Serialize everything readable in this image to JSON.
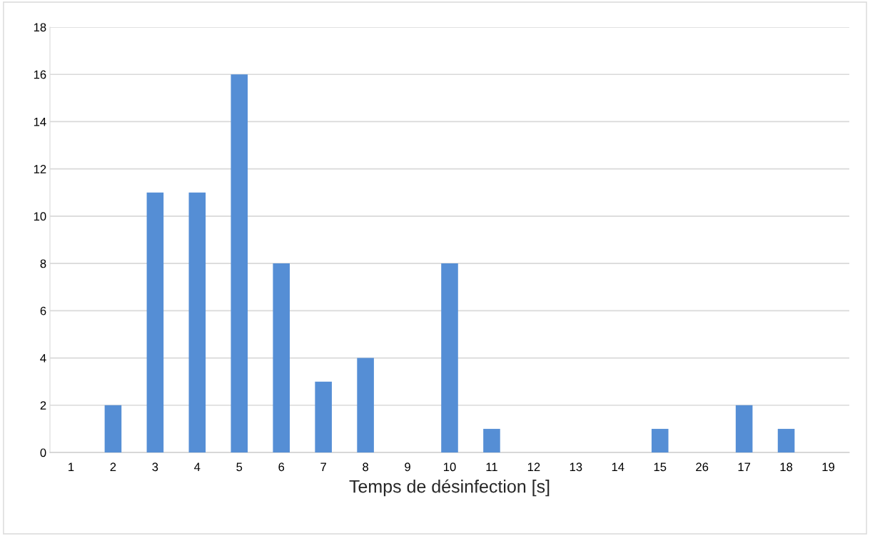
{
  "chart_data": {
    "type": "bar",
    "xlabel": "Temps de désinfection [s]",
    "categories": [
      "1",
      "2",
      "3",
      "4",
      "5",
      "6",
      "7",
      "8",
      "9",
      "10",
      "11",
      "12",
      "13",
      "14",
      "15",
      "26",
      "17",
      "18",
      "19"
    ],
    "values": [
      0,
      2,
      11,
      11,
      16,
      8,
      3,
      4,
      0,
      8,
      1,
      0,
      0,
      0,
      1,
      0,
      2,
      1,
      0
    ],
    "color": "#558ed5",
    "ylim": [
      0,
      18
    ],
    "yticks": [
      0,
      2,
      4,
      6,
      8,
      10,
      12,
      14,
      16,
      18
    ],
    "grid": "y",
    "legend": false
  }
}
